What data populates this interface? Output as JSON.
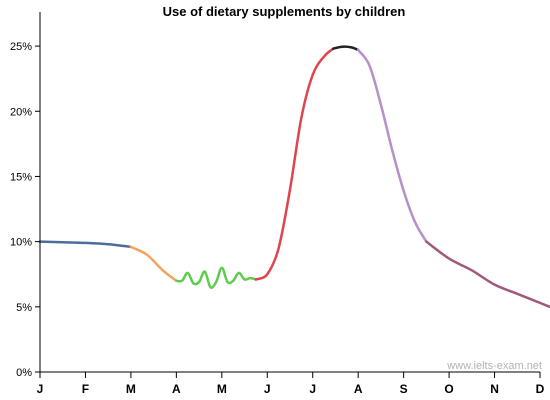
{
  "chart_data": {
    "type": "line",
    "title": "Use of dietary supplements by children",
    "xlabel": "",
    "ylabel": "",
    "ylim": [
      0,
      27
    ],
    "ytick_labels": [
      "0%",
      "5%",
      "10%",
      "15%",
      "20%",
      "25%"
    ],
    "yticks": [
      0,
      5,
      10,
      15,
      20,
      25
    ],
    "categories": [
      "J",
      "F",
      "M",
      "A",
      "M",
      "J",
      "J",
      "A",
      "S",
      "O",
      "N",
      "D"
    ],
    "grid": false,
    "legend": "none",
    "series": [
      {
        "segments": [
          {
            "color": "#4a6d9c",
            "points": [
              [
                0,
                10.0
              ],
              [
                0.5,
                9.95
              ],
              [
                1,
                9.9
              ],
              [
                1.5,
                9.8
              ],
              [
                2,
                9.6
              ]
            ]
          },
          {
            "color": "#f3a35d",
            "points": [
              [
                2,
                9.6
              ],
              [
                2.35,
                9.0
              ],
              [
                2.7,
                7.8
              ],
              [
                3,
                7.0
              ]
            ]
          },
          {
            "color": "#5ecb4d",
            "points": [
              [
                3,
                7.0
              ],
              [
                3.125,
                7.0
              ],
              [
                3.25,
                7.6
              ],
              [
                3.375,
                6.8
              ],
              [
                3.5,
                6.9
              ],
              [
                3.625,
                7.7
              ],
              [
                3.75,
                6.5
              ],
              [
                3.875,
                6.9
              ],
              [
                4,
                8.0
              ],
              [
                4.125,
                6.9
              ],
              [
                4.25,
                7.0
              ],
              [
                4.375,
                7.6
              ],
              [
                4.5,
                7.1
              ],
              [
                4.625,
                7.2
              ],
              [
                4.75,
                7.1
              ]
            ]
          },
          {
            "color": "#e0444d",
            "points": [
              [
                4.75,
                7.1
              ],
              [
                5,
                7.5
              ],
              [
                5.25,
                9.5
              ],
              [
                5.5,
                14.0
              ],
              [
                5.75,
                19.5
              ],
              [
                6,
                22.8
              ],
              [
                6.25,
                24.2
              ],
              [
                6.45,
                24.8
              ]
            ]
          },
          {
            "color": "#222222",
            "points": [
              [
                6.45,
                24.8
              ],
              [
                6.65,
                24.95
              ],
              [
                6.85,
                24.9
              ],
              [
                7,
                24.7
              ]
            ]
          },
          {
            "color": "#b78fcb",
            "points": [
              [
                7,
                24.7
              ],
              [
                7.25,
                23.5
              ],
              [
                7.5,
                20.5
              ],
              [
                7.75,
                17.0
              ],
              [
                8,
                13.9
              ],
              [
                8.25,
                11.5
              ],
              [
                8.5,
                10.0
              ]
            ]
          },
          {
            "color": "#a0597a",
            "points": [
              [
                8.5,
                10.0
              ],
              [
                9,
                8.7
              ],
              [
                9.5,
                7.8
              ],
              [
                10,
                6.7
              ],
              [
                10.5,
                6.0
              ],
              [
                11,
                5.3
              ],
              [
                11.5,
                4.6
              ]
            ]
          }
        ]
      }
    ]
  },
  "watermark": "www.ielts-exam.net"
}
